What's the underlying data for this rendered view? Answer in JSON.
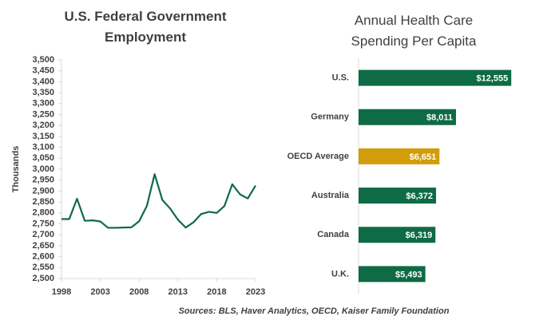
{
  "chart_data": [
    {
      "type": "line",
      "title": "U.S. Federal Government Employment",
      "y_label": "Thousands",
      "x": [
        1998,
        1999,
        2000,
        2001,
        2002,
        2003,
        2004,
        2005,
        2006,
        2007,
        2008,
        2009,
        2010,
        2011,
        2012,
        2013,
        2014,
        2015,
        2016,
        2017,
        2018,
        2019,
        2020,
        2021,
        2022,
        2023
      ],
      "values": [
        2772,
        2772,
        2865,
        2764,
        2766,
        2761,
        2732,
        2732,
        2733,
        2734,
        2762,
        2832,
        2977,
        2859,
        2820,
        2769,
        2733,
        2757,
        2795,
        2805,
        2800,
        2832,
        2931,
        2885,
        2866,
        2925
      ],
      "color": "#0e6b45",
      "xlim": [
        1998,
        2023
      ],
      "xticks": [
        1998,
        2003,
        2008,
        2013,
        2018,
        2023
      ],
      "ylim": [
        2500,
        3500
      ],
      "yticks": [
        {
          "value": 2500,
          "label": "2,500"
        },
        {
          "value": 2550,
          "label": "2,550"
        },
        {
          "value": 2600,
          "label": "2,600"
        },
        {
          "value": 2650,
          "label": "2,650"
        },
        {
          "value": 2700,
          "label": "2,700"
        },
        {
          "value": 2750,
          "label": "2,750"
        },
        {
          "value": 2800,
          "label": "2,800"
        },
        {
          "value": 2850,
          "label": "2,850"
        },
        {
          "value": 2900,
          "label": "2,900"
        },
        {
          "value": 2950,
          "label": "2,950"
        },
        {
          "value": 3000,
          "label": "3,000"
        },
        {
          "value": 3050,
          "label": "3,050"
        },
        {
          "value": 3100,
          "label": "3,100"
        },
        {
          "value": 3150,
          "label": "3,150"
        },
        {
          "value": 3200,
          "label": "3,200"
        },
        {
          "value": 3250,
          "label": "3,250"
        },
        {
          "value": 3300,
          "label": "3,300"
        },
        {
          "value": 3350,
          "label": "3,350"
        },
        {
          "value": 3400,
          "label": "3,400"
        },
        {
          "value": 3450,
          "label": "3,450"
        },
        {
          "value": 3500,
          "label": "3,500"
        }
      ],
      "grid": false
    },
    {
      "type": "hbar",
      "title": "Annual Health Care Spending Per Capita",
      "categories": [
        "U.S.",
        "Germany",
        "OECD Average",
        "Australia",
        "Canada",
        "U.K."
      ],
      "values": [
        12555,
        8011,
        6651,
        6372,
        6319,
        5493
      ],
      "value_labels": [
        "$12,555",
        "$8,011",
        "$6,651",
        "$6,372",
        "$6,319",
        "$5,493"
      ],
      "colors": [
        "#0e6b45",
        "#0e6b45",
        "#d19d0a",
        "#0e6b45",
        "#0e6b45",
        "#0e6b45"
      ],
      "xlim": [
        0,
        13000
      ]
    }
  ],
  "source": "Sources: BLS, Haver Analytics, OECD, Kaiser Family Foundation"
}
